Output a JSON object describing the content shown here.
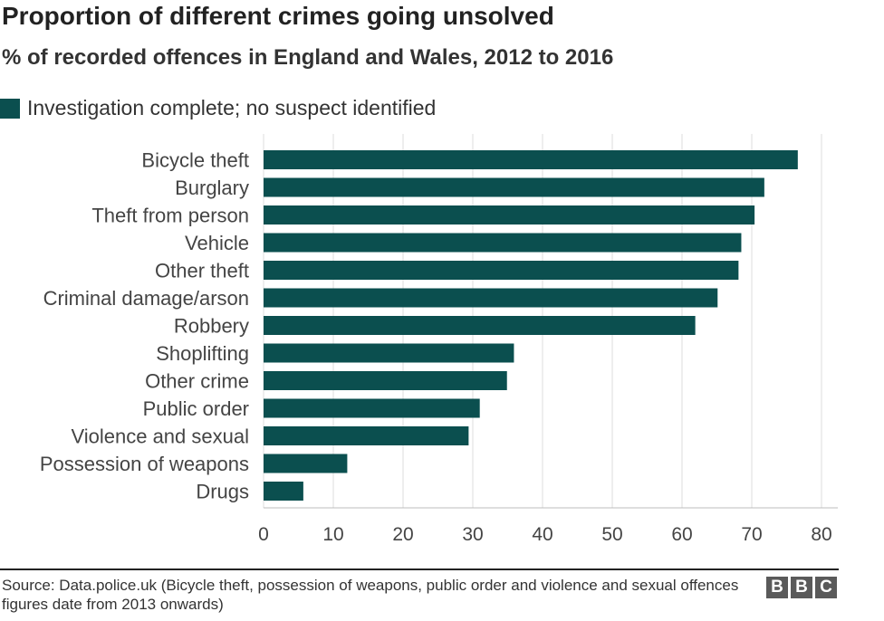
{
  "header": {
    "title": "Proportion of different crimes going unsolved",
    "subtitle": "% of recorded offences in England and Wales, 2012 to 2016"
  },
  "legend": {
    "label": "Investigation complete; no suspect identified",
    "color": "#0b4f4f"
  },
  "footer": {
    "source": "Source: Data.police.uk (Bicycle theft, possession of weapons, public order and violence and sexual offences figures date from 2013 onwards)",
    "logo_letters": [
      "B",
      "B",
      "C"
    ]
  },
  "chart_data": {
    "type": "bar",
    "orientation": "horizontal",
    "title": "Proportion of different crimes going unsolved",
    "subtitle": "% of recorded offences in England and Wales, 2012 to 2016",
    "xlabel": "",
    "ylabel": "",
    "xlim": [
      0,
      80
    ],
    "xticks": [
      0,
      10,
      20,
      30,
      40,
      50,
      60,
      70,
      80
    ],
    "grid": "vertical",
    "legend_position": "top-left",
    "bar_color": "#0b4f4f",
    "categories": [
      "Bicycle theft",
      "Burglary",
      "Theft from person",
      "Vehicle",
      "Other theft",
      "Criminal damage/arson",
      "Robbery",
      "Shoplifting",
      "Other crime",
      "Public order",
      "Violence and sexual",
      "Possession of weapons",
      "Drugs"
    ],
    "series": [
      {
        "name": "Investigation complete; no suspect identified",
        "values": [
          76.6,
          71.8,
          70.4,
          68.5,
          68.1,
          65.1,
          61.9,
          35.9,
          34.9,
          31.0,
          29.4,
          12.0,
          5.7
        ]
      }
    ]
  }
}
